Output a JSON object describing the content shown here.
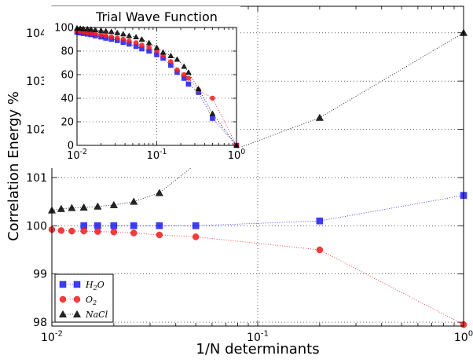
{
  "chart_data": [
    {
      "type": "scatter",
      "title": "",
      "xlabel": "1/N determinants",
      "ylabel": "Correlation Energy %",
      "x_scale": "log",
      "xlim": [
        0.01,
        1
      ],
      "ylim": [
        97.92,
        104.55
      ],
      "x_tick_labels": [
        {
          "value": 0.01,
          "base": "10",
          "exp": "-2"
        },
        {
          "value": 0.1,
          "base": "10",
          "exp": "-1"
        },
        {
          "value": 1,
          "base": "10",
          "exp": "0"
        }
      ],
      "y_ticks": [
        98,
        99,
        100,
        101,
        102,
        103,
        104
      ],
      "y_tick_labels": [
        "98",
        "99",
        "100",
        "101",
        "102",
        "103",
        "104"
      ],
      "grid": true,
      "legend_position": "lower-left",
      "series": [
        {
          "name": "H2O",
          "legend_base": "H",
          "legend_sub": "2",
          "legend_tail": "O",
          "marker": "square",
          "color": "#1c1cf0",
          "x": [
            0.0143,
            0.0167,
            0.02,
            0.025,
            0.0333,
            0.05,
            0.2,
            1.0
          ],
          "y": [
            100.0,
            100.0,
            100.0,
            100.0,
            100.0,
            100.0,
            100.1,
            100.63
          ]
        },
        {
          "name": "O2",
          "legend_base": "O",
          "legend_sub": "2",
          "legend_tail": "",
          "marker": "circle",
          "color": "#f01c1c",
          "x": [
            0.01,
            0.0111,
            0.0125,
            0.0143,
            0.0167,
            0.02,
            0.025,
            0.0333,
            0.05,
            0.2,
            1.0
          ],
          "y": [
            99.92,
            99.9,
            99.89,
            99.89,
            99.88,
            99.87,
            99.85,
            99.81,
            99.77,
            99.5,
            97.95
          ]
        },
        {
          "name": "NaCl",
          "legend_base": "NaCl",
          "legend_sub": "",
          "legend_tail": "",
          "marker": "triangle",
          "color": "#000000",
          "x": [
            0.01,
            0.0111,
            0.0125,
            0.0143,
            0.0167,
            0.02,
            0.025,
            0.0333,
            0.05,
            0.2,
            1.0
          ],
          "y": [
            100.32,
            100.35,
            100.37,
            100.38,
            100.4,
            100.43,
            100.5,
            100.68,
            101.28,
            102.24,
            104.0
          ]
        }
      ]
    },
    {
      "type": "scatter",
      "title": "Trial Wave Function",
      "xlabel": "",
      "ylabel": "",
      "x_scale": "log",
      "xlim": [
        0.01,
        1
      ],
      "ylim": [
        0,
        100
      ],
      "x_tick_labels": [
        {
          "value": 0.01,
          "base": "10",
          "exp": "-2"
        },
        {
          "value": 0.1,
          "base": "10",
          "exp": "-1"
        },
        {
          "value": 1,
          "base": "10",
          "exp": "0"
        }
      ],
      "y_ticks": [
        0,
        20,
        40,
        60,
        80,
        100
      ],
      "y_tick_labels": [
        "0",
        "20",
        "40",
        "60",
        "80",
        "100"
      ],
      "grid": true,
      "series": [
        {
          "name": "H2O",
          "marker": "square",
          "color": "#1c1cf0",
          "x": [
            0.01,
            0.011,
            0.012,
            0.0135,
            0.015,
            0.017,
            0.02,
            0.023,
            0.027,
            0.032,
            0.038,
            0.045,
            0.055,
            0.065,
            0.08,
            0.1,
            0.12,
            0.15,
            0.18,
            0.22,
            0.25,
            0.333,
            0.5,
            1.0
          ],
          "y": [
            96,
            95.5,
            95,
            94.5,
            94,
            93,
            92,
            91,
            90,
            89,
            87.5,
            86,
            84,
            82,
            80,
            77,
            74,
            68,
            62,
            57,
            52,
            45,
            23,
            0
          ]
        },
        {
          "name": "O2",
          "marker": "circle",
          "color": "#f01c1c",
          "x": [
            0.01,
            0.011,
            0.012,
            0.0135,
            0.015,
            0.017,
            0.02,
            0.023,
            0.027,
            0.032,
            0.038,
            0.045,
            0.055,
            0.065,
            0.08,
            0.1,
            0.12,
            0.15,
            0.18,
            0.22,
            0.25,
            0.333,
            0.5,
            1.0
          ],
          "y": [
            97,
            96.5,
            96,
            95.5,
            95,
            94.5,
            94,
            93,
            92,
            91,
            90,
            88.5,
            87,
            85,
            83,
            80,
            76,
            71,
            64,
            60,
            57,
            47,
            40,
            0
          ]
        },
        {
          "name": "NaCl",
          "marker": "triangle",
          "color": "#000000",
          "x": [
            0.01,
            0.011,
            0.012,
            0.0135,
            0.015,
            0.017,
            0.02,
            0.023,
            0.027,
            0.032,
            0.038,
            0.045,
            0.055,
            0.065,
            0.08,
            0.1,
            0.12,
            0.15,
            0.18,
            0.22,
            0.25,
            0.333,
            0.5,
            1.0
          ],
          "y": [
            99.5,
            99.3,
            99,
            98.8,
            98.5,
            98,
            97.5,
            97,
            96.5,
            95.5,
            94.5,
            93,
            92,
            90,
            87,
            83,
            79,
            76,
            73,
            67,
            62,
            48,
            27,
            0
          ]
        }
      ]
    }
  ]
}
